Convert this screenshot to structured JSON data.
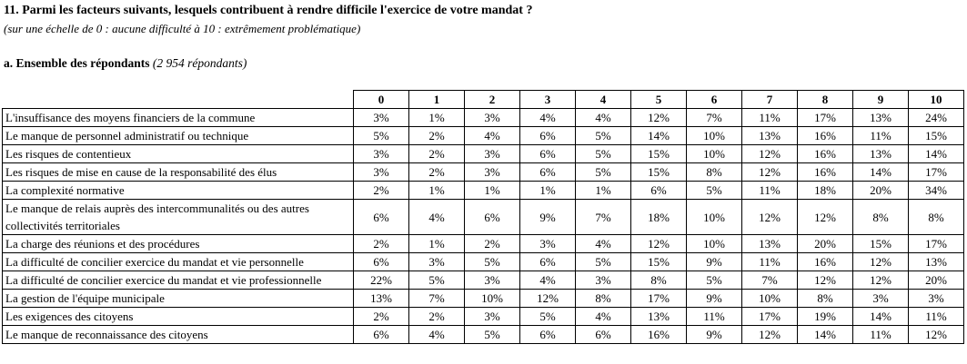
{
  "page": {
    "title": "11. Parmi les facteurs suivants, lesquels contribuent à rendre difficile l'exercice de votre mandat ?",
    "subtitle": "(sur une échelle de 0 : aucune difficulté à 10 : extrêmement problématique)",
    "section_title": "a. Ensemble des répondants",
    "section_note": "(2 954 répondants)"
  },
  "chart_data": {
    "type": "table",
    "columns": [
      "0",
      "1",
      "2",
      "3",
      "4",
      "5",
      "6",
      "7",
      "8",
      "9",
      "10"
    ],
    "rows": [
      {
        "label": "L'insuffisance des moyens financiers de la commune",
        "values": [
          "3%",
          "1%",
          "3%",
          "4%",
          "4%",
          "12%",
          "7%",
          "11%",
          "17%",
          "13%",
          "24%"
        ]
      },
      {
        "label": "Le manque de personnel administratif ou technique",
        "values": [
          "5%",
          "2%",
          "4%",
          "6%",
          "5%",
          "14%",
          "10%",
          "13%",
          "16%",
          "11%",
          "15%"
        ]
      },
      {
        "label": "Les risques de contentieux",
        "values": [
          "3%",
          "2%",
          "3%",
          "6%",
          "5%",
          "15%",
          "10%",
          "12%",
          "16%",
          "13%",
          "14%"
        ]
      },
      {
        "label": "Les risques de mise en cause de la responsabilité des élus",
        "values": [
          "3%",
          "2%",
          "3%",
          "6%",
          "5%",
          "15%",
          "8%",
          "12%",
          "16%",
          "14%",
          "17%"
        ]
      },
      {
        "label": "La complexité normative",
        "values": [
          "2%",
          "1%",
          "1%",
          "1%",
          "1%",
          "6%",
          "5%",
          "11%",
          "18%",
          "20%",
          "34%"
        ]
      },
      {
        "label": "Le manque de relais auprès des intercommunalités ou des autres collectivités territoriales",
        "values": [
          "6%",
          "4%",
          "6%",
          "9%",
          "7%",
          "18%",
          "10%",
          "12%",
          "12%",
          "8%",
          "8%"
        ]
      },
      {
        "label": "La charge des réunions et des procédures",
        "values": [
          "2%",
          "1%",
          "2%",
          "3%",
          "4%",
          "12%",
          "10%",
          "13%",
          "20%",
          "15%",
          "17%"
        ]
      },
      {
        "label": "La difficulté de concilier exercice du mandat et vie personnelle",
        "values": [
          "6%",
          "3%",
          "5%",
          "6%",
          "5%",
          "15%",
          "9%",
          "11%",
          "16%",
          "12%",
          "13%"
        ]
      },
      {
        "label": "La difficulté de concilier exercice du mandat et vie professionnelle",
        "values": [
          "22%",
          "5%",
          "3%",
          "4%",
          "3%",
          "8%",
          "5%",
          "7%",
          "12%",
          "12%",
          "20%"
        ]
      },
      {
        "label": "La gestion de l'équipe municipale",
        "values": [
          "13%",
          "7%",
          "10%",
          "12%",
          "8%",
          "17%",
          "9%",
          "10%",
          "8%",
          "3%",
          "3%"
        ]
      },
      {
        "label": "Les exigences des citoyens",
        "values": [
          "2%",
          "2%",
          "3%",
          "5%",
          "4%",
          "13%",
          "11%",
          "17%",
          "19%",
          "14%",
          "11%"
        ]
      },
      {
        "label": "Le manque de reconnaissance des citoyens",
        "values": [
          "6%",
          "4%",
          "5%",
          "6%",
          "6%",
          "16%",
          "9%",
          "12%",
          "14%",
          "11%",
          "12%"
        ]
      }
    ]
  }
}
